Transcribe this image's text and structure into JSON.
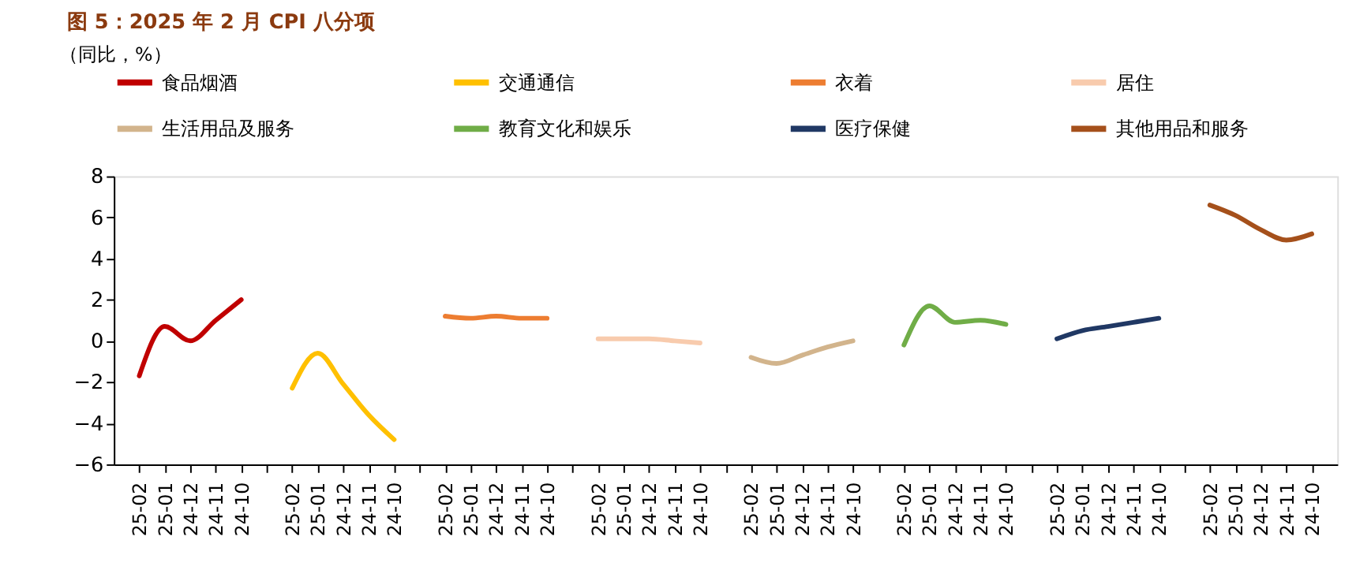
{
  "chart_data": {
    "type": "line",
    "title": "图 5：2025 年 2 月 CPI 八分项",
    "annotations": [
      "（同比，%）"
    ],
    "categories": [
      "25-02",
      "25-01",
      "24-12",
      "24-11",
      "24-10",
      null,
      "25-02",
      "25-01",
      "24-12",
      "24-11",
      "24-10",
      null,
      "25-02",
      "25-01",
      "24-12",
      "24-11",
      "24-10",
      null,
      "25-02",
      "25-01",
      "24-12",
      "24-11",
      "24-10",
      null,
      "25-02",
      "25-01",
      "24-12",
      "24-11",
      "24-10",
      null,
      "25-02",
      "25-01",
      "24-12",
      "24-11",
      "24-10",
      null,
      "25-02",
      "25-01",
      "24-12",
      "24-11",
      "24-10",
      null,
      "25-02",
      "25-01",
      "24-12",
      "24-11",
      "24-10"
    ],
    "series": [
      {
        "name": "食品烟酒",
        "color": "#c00000",
        "values": [
          -1.7,
          0.7,
          0.0,
          1.0,
          2.0,
          null,
          null,
          null,
          null,
          null,
          null,
          null,
          null,
          null,
          null,
          null,
          null,
          null,
          null,
          null,
          null,
          null,
          null,
          null,
          null,
          null,
          null,
          null,
          null,
          null,
          null,
          null,
          null,
          null,
          null,
          null,
          null,
          null,
          null,
          null,
          null,
          null,
          null,
          null,
          null,
          null,
          null
        ]
      },
      {
        "name": "交通通信",
        "color": "#ffc000",
        "values": [
          null,
          null,
          null,
          null,
          null,
          null,
          -2.3,
          -0.6,
          -2.1,
          -3.6,
          -4.8,
          null,
          null,
          null,
          null,
          null,
          null,
          null,
          null,
          null,
          null,
          null,
          null,
          null,
          null,
          null,
          null,
          null,
          null,
          null,
          null,
          null,
          null,
          null,
          null,
          null,
          null,
          null,
          null,
          null,
          null,
          null,
          null,
          null,
          null,
          null,
          null
        ]
      },
      {
        "name": "衣着",
        "color": "#ed7d31",
        "values": [
          null,
          null,
          null,
          null,
          null,
          null,
          null,
          null,
          null,
          null,
          null,
          null,
          1.2,
          1.1,
          1.2,
          1.1,
          1.1,
          null,
          null,
          null,
          null,
          null,
          null,
          null,
          null,
          null,
          null,
          null,
          null,
          null,
          null,
          null,
          null,
          null,
          null,
          null,
          null,
          null,
          null,
          null,
          null,
          null,
          null,
          null,
          null,
          null,
          null
        ]
      },
      {
        "name": "居住",
        "color": "#f8cbad",
        "values": [
          null,
          null,
          null,
          null,
          null,
          null,
          null,
          null,
          null,
          null,
          null,
          null,
          null,
          null,
          null,
          null,
          null,
          null,
          0.1,
          0.1,
          0.1,
          0.0,
          -0.1,
          null,
          null,
          null,
          null,
          null,
          null,
          null,
          null,
          null,
          null,
          null,
          null,
          null,
          null,
          null,
          null,
          null,
          null,
          null,
          null,
          null,
          null,
          null,
          null
        ]
      },
      {
        "name": "生活用品及服务",
        "color": "#d2b48c",
        "values": [
          null,
          null,
          null,
          null,
          null,
          null,
          null,
          null,
          null,
          null,
          null,
          null,
          null,
          null,
          null,
          null,
          null,
          null,
          null,
          null,
          null,
          null,
          null,
          null,
          -0.8,
          -1.1,
          -0.7,
          -0.3,
          0.0,
          null,
          null,
          null,
          null,
          null,
          null,
          null,
          null,
          null,
          null,
          null,
          null,
          null,
          null,
          null,
          null,
          null,
          null
        ]
      },
      {
        "name": "教育文化和娱乐",
        "color": "#70ad47",
        "values": [
          null,
          null,
          null,
          null,
          null,
          null,
          null,
          null,
          null,
          null,
          null,
          null,
          null,
          null,
          null,
          null,
          null,
          null,
          null,
          null,
          null,
          null,
          null,
          null,
          null,
          null,
          null,
          null,
          null,
          null,
          -0.2,
          1.7,
          0.9,
          1.0,
          0.8,
          null,
          null,
          null,
          null,
          null,
          null,
          null,
          null,
          null,
          null,
          null,
          null
        ]
      },
      {
        "name": "医疗保健",
        "color": "#203864",
        "values": [
          null,
          null,
          null,
          null,
          null,
          null,
          null,
          null,
          null,
          null,
          null,
          null,
          null,
          null,
          null,
          null,
          null,
          null,
          null,
          null,
          null,
          null,
          null,
          null,
          null,
          null,
          null,
          null,
          null,
          null,
          null,
          null,
          null,
          null,
          null,
          null,
          0.1,
          0.5,
          0.7,
          0.9,
          1.1,
          null,
          null,
          null,
          null,
          null,
          null
        ]
      },
      {
        "name": "其他用品和服务",
        "color": "#a5501b",
        "values": [
          null,
          null,
          null,
          null,
          null,
          null,
          null,
          null,
          null,
          null,
          null,
          null,
          null,
          null,
          null,
          null,
          null,
          null,
          null,
          null,
          null,
          null,
          null,
          null,
          null,
          null,
          null,
          null,
          null,
          null,
          null,
          null,
          null,
          null,
          null,
          null,
          null,
          null,
          null,
          null,
          null,
          null,
          6.6,
          6.1,
          5.4,
          4.9,
          5.2
        ]
      }
    ],
    "ylim": [
      -6,
      8
    ],
    "yticks": [
      -6,
      -4,
      -2,
      0,
      2,
      4,
      6,
      8
    ],
    "grid": false,
    "legend": "top",
    "line_style": "solid",
    "marker": "none"
  }
}
